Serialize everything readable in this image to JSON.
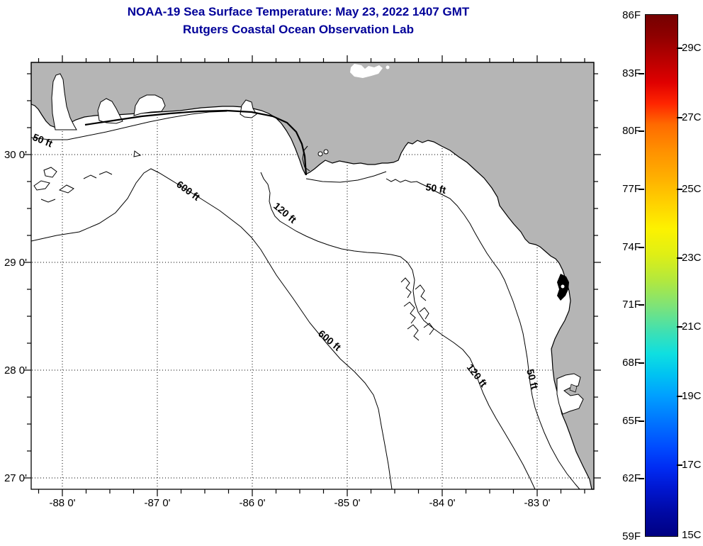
{
  "title": {
    "line1": "NOAA-19 Sea Surface Temperature:  May 23, 2022 1407 GMT",
    "line2": "Rutgers Coastal Ocean Observation Lab"
  },
  "axes": {
    "x": [
      "-88 0'",
      "-87 0'",
      "-86 0'",
      "-85 0'",
      "-84 0'",
      "-83 0'"
    ],
    "y": [
      "30 0'",
      "29 0'",
      "28 0'",
      "27 0'"
    ]
  },
  "contour_labels": [
    "50 ft",
    "600 ft",
    "120 ft",
    "50 ft",
    "600 ft",
    "120 ft",
    "50 ft"
  ],
  "colorbar": {
    "fahrenheit": [
      "86F",
      "83F",
      "80F",
      "77F",
      "74F",
      "71F",
      "68F",
      "65F",
      "62F",
      "59F"
    ],
    "celsius": [
      "29C",
      "27C",
      "25C",
      "23C",
      "21C",
      "19C",
      "17C",
      "15C"
    ]
  },
  "colors": {
    "title_blue": "#000099",
    "land_gray": "#b5b5b5",
    "colorbar_top": "#750101",
    "colorbar_bottom": "#000082"
  }
}
